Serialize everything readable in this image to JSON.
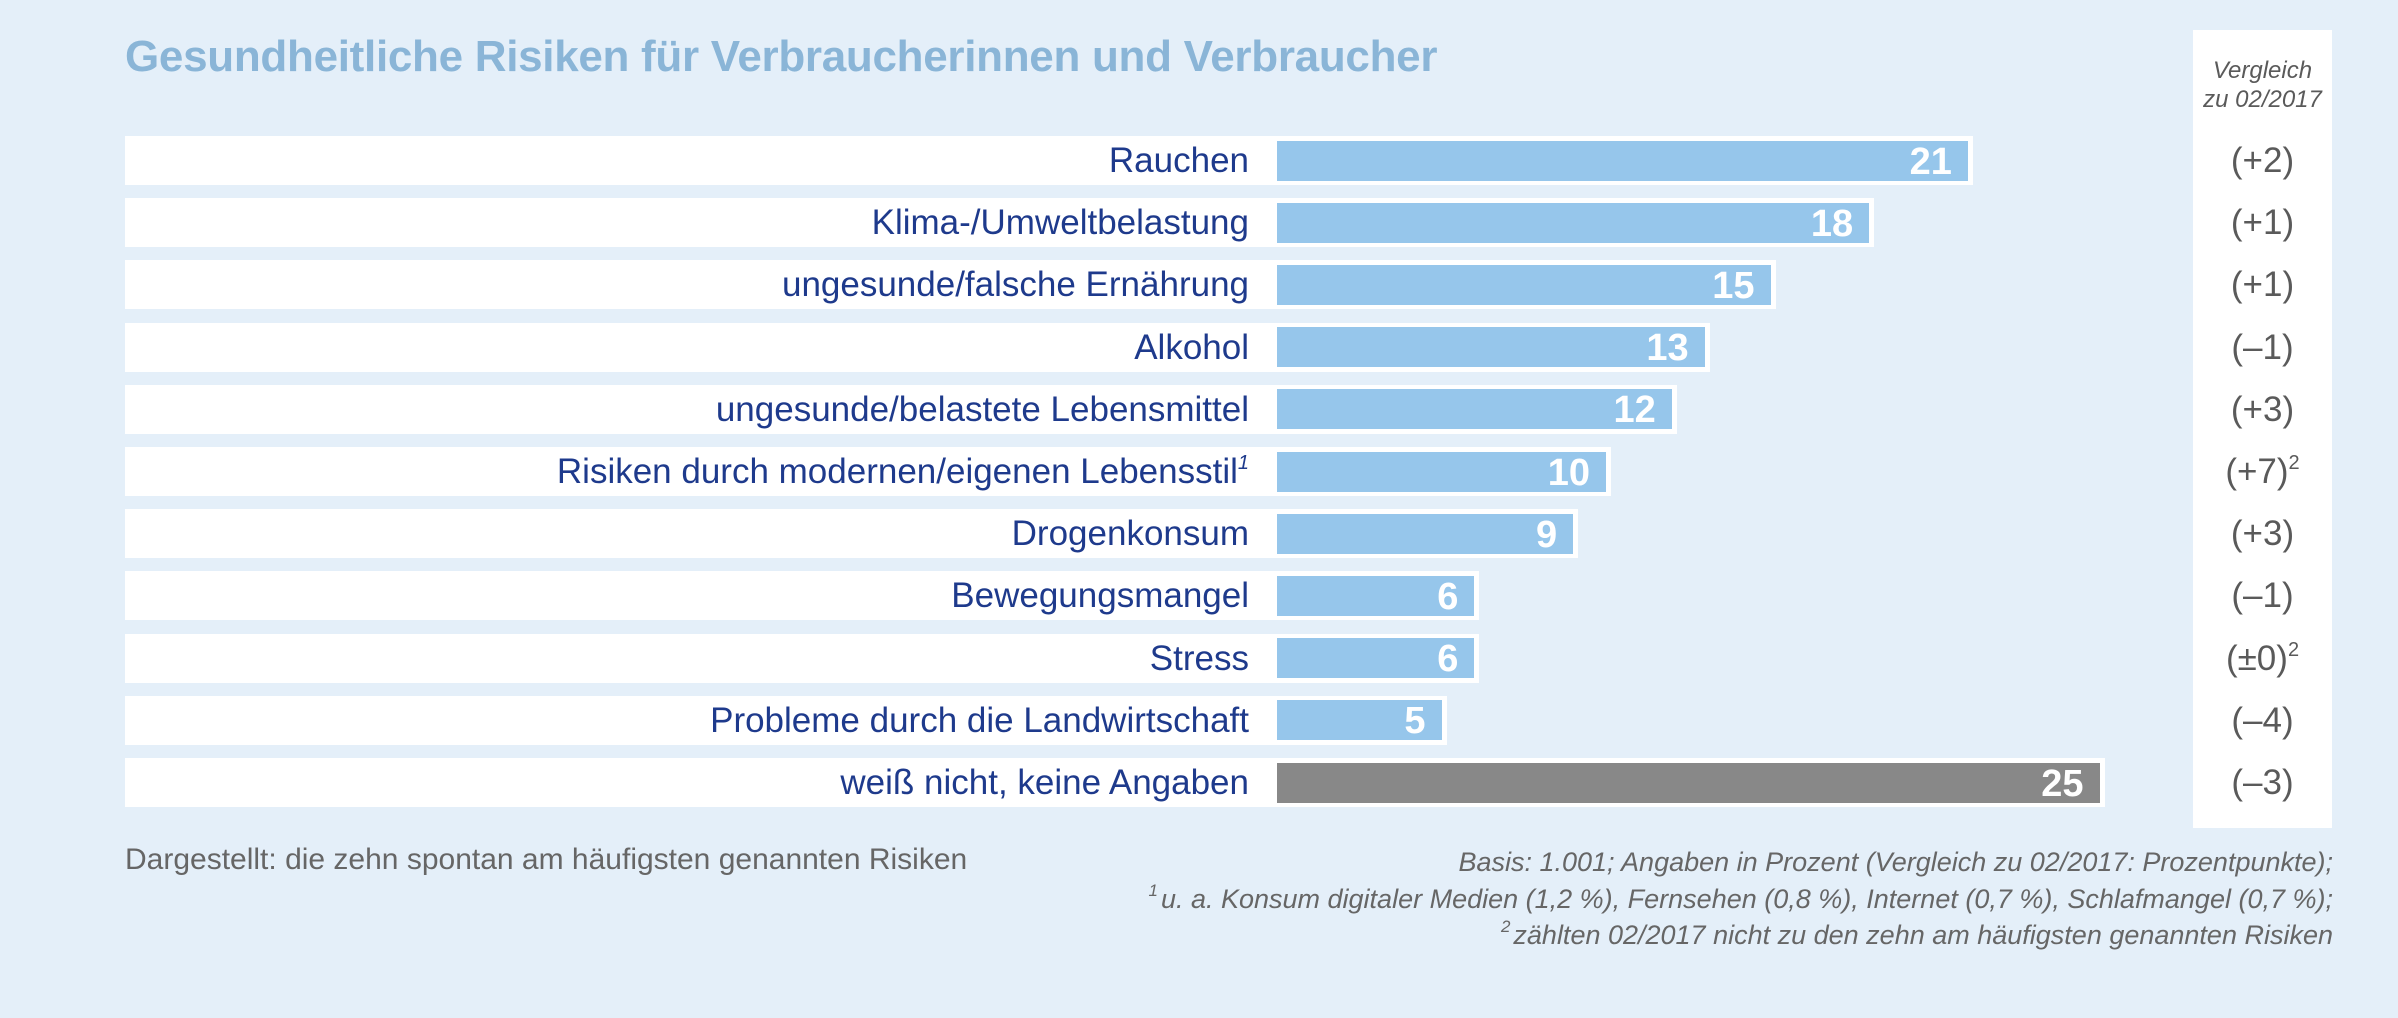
{
  "chart_data": {
    "type": "bar",
    "orientation": "horizontal",
    "title": "Gesundheitliche Risiken für Verbraucherinnen und Verbraucher",
    "xlabel": "",
    "ylabel": "",
    "unit": "Prozent",
    "categories": [
      "Rauchen",
      "Klima-/Umweltbelastung",
      "ungesunde/falsche Ernährung",
      "Alkohol",
      "ungesunde/belastete Lebensmittel",
      "Risiken durch modernen/eigenen Lebensstil",
      "Drogenkonsum",
      "Bewegungsmangel",
      "Stress",
      "Probleme durch die Landwirtschaft",
      "weiß nicht, keine Angaben"
    ],
    "category_footnotes": [
      "",
      "",
      "",
      "",
      "",
      "1",
      "",
      "",
      "",
      "",
      ""
    ],
    "values": [
      21,
      18,
      15,
      13,
      12,
      10,
      9,
      6,
      6,
      5,
      25
    ],
    "bar_colors": [
      "#96c6eb",
      "#96c6eb",
      "#96c6eb",
      "#96c6eb",
      "#96c6eb",
      "#96c6eb",
      "#96c6eb",
      "#96c6eb",
      "#96c6eb",
      "#96c6eb",
      "#888888"
    ],
    "comparison_header": "Vergleich zu 02/2017",
    "comparison_header_lines": [
      "Vergleich",
      "zu 02/2017"
    ],
    "comparison": [
      "(+2)",
      "(+1)",
      "(+1)",
      "(–1)",
      "(+3)",
      "(+7)",
      "(+3)",
      "(–1)",
      "(±0)",
      "(–4)",
      "(–3)"
    ],
    "comparison_footnotes": [
      "",
      "",
      "",
      "",
      "",
      "2",
      "",
      "",
      "2",
      "",
      ""
    ],
    "xlim": [
      0,
      25
    ],
    "grid": false,
    "legend": "none"
  },
  "notes": {
    "left": "Dargestellt: die zehn spontan am häufigsten genannten Risiken",
    "basis": "Basis: 1.001; Angaben in Prozent (Vergleich zu 02/2017: Prozentpunkte);",
    "footnote1_mark": "1",
    "footnote1": "u. a. Konsum digitaler Medien (1,2 %), Fernsehen (0,8 %), Internet (0,7 %), Schlafmangel (0,7 %);",
    "footnote2_mark": "2",
    "footnote2": "zählten 02/2017 nicht zu den zehn am häufigsten genannten Risiken"
  },
  "colors": {
    "background": "#e4eff9",
    "title": "#8ab5d7",
    "label": "#1e3a8c",
    "bar": "#96c6eb",
    "bar_dontknow": "#888888",
    "comparison_text": "#5a5a5a"
  }
}
